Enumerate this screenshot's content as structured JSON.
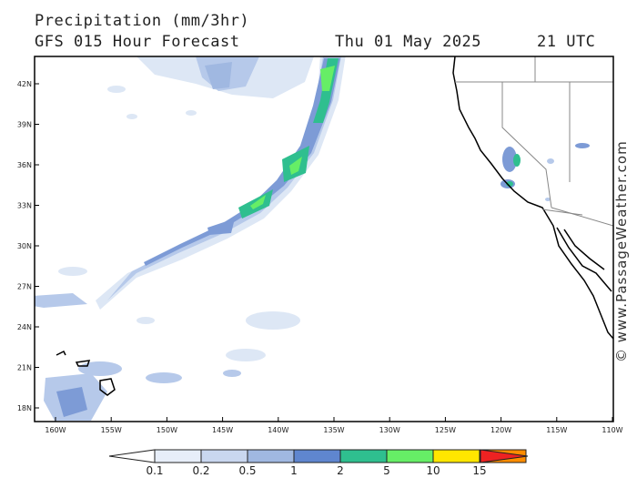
{
  "header": {
    "title": "Precipitation (mm/3hr)",
    "subtitle": "GFS 015 Hour Forecast",
    "date": "Thu 01 May 2025",
    "time": "21 UTC"
  },
  "axes": {
    "lat_labels": [
      "42N",
      "39N",
      "36N",
      "33N",
      "30N",
      "27N",
      "24N",
      "21N",
      "18N"
    ],
    "lon_labels": [
      "160W",
      "155W",
      "150W",
      "145W",
      "140W",
      "135W",
      "130W",
      "125W",
      "120W",
      "115W",
      "110W"
    ]
  },
  "legend": {
    "bins": [
      {
        "label": "0.1",
        "color": "#e7eef9"
      },
      {
        "label": "0.2",
        "color": "#c9d7ef"
      },
      {
        "label": "0.5",
        "color": "#a0b8e1"
      },
      {
        "label": "1",
        "color": "#5f86cf"
      },
      {
        "label": "2",
        "color": "#2fbf8f"
      },
      {
        "label": "5",
        "color": "#66ee66"
      },
      {
        "label": "10",
        "color": "#ffe600"
      },
      {
        "label": "15",
        "color": "#ff8c00"
      }
    ],
    "high_color": "#ee2222"
  },
  "credit": "© www.PassageWeather.com",
  "colors": {
    "light": "#dde7f5",
    "mid": "#b6c9ea",
    "blue": "#7d9bd6",
    "teal": "#2fbf8f",
    "green": "#66ee66",
    "land_border": "#000000",
    "state_border": "#888888"
  }
}
